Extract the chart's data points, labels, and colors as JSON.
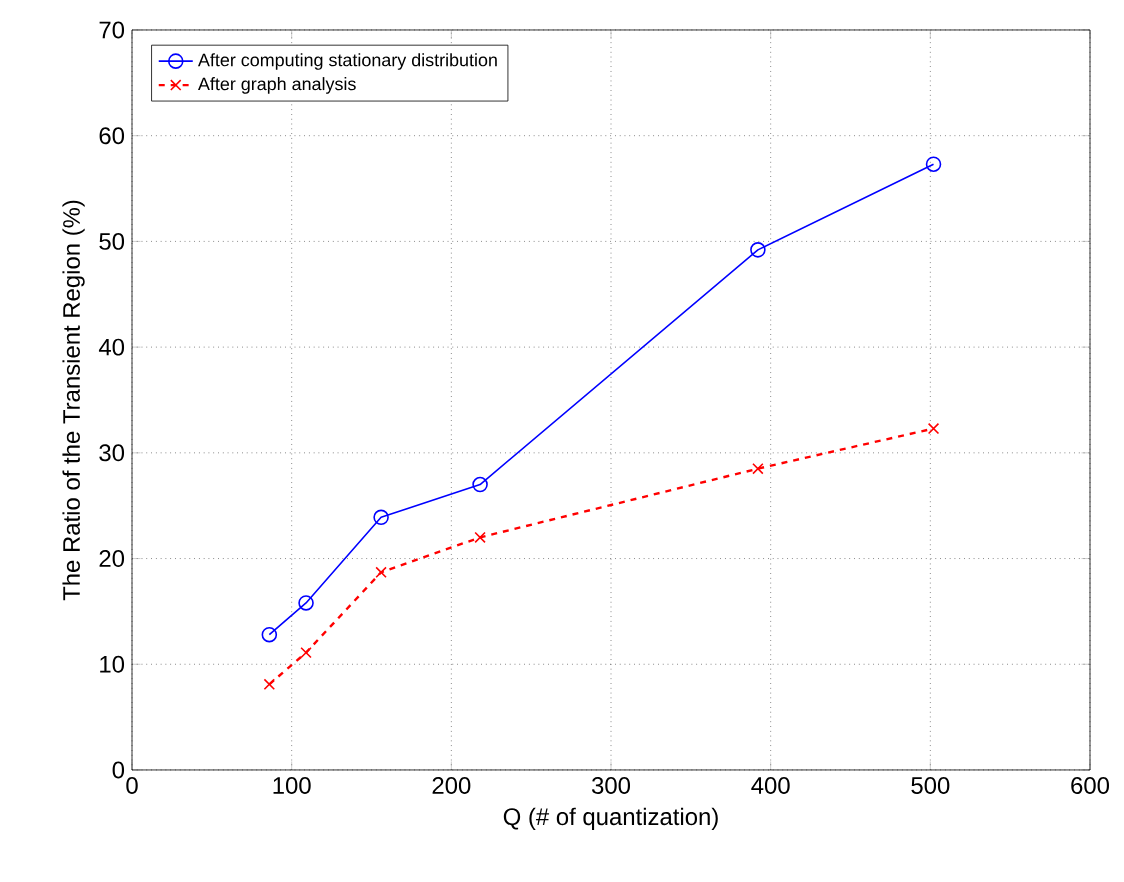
{
  "chart_data": {
    "type": "line",
    "xlabel": "Q (# of quantization)",
    "ylabel": "The Ratio of the Transient Region (%)",
    "xlim": [
      0,
      600
    ],
    "xticks": [
      0,
      100,
      200,
      300,
      400,
      500,
      600
    ],
    "ylim": [
      0,
      70
    ],
    "yticks": [
      0,
      10,
      20,
      30,
      40,
      50,
      60,
      70
    ],
    "grid": true,
    "legend": "top left",
    "series": [
      {
        "name": "After computing stationary distribution",
        "color": "#0000ff",
        "marker": "circle",
        "line_style": "solid",
        "x": [
          86,
          109,
          156,
          218,
          392,
          502
        ],
        "values": [
          12.8,
          15.8,
          23.9,
          27,
          49.2,
          57.3
        ]
      },
      {
        "name": "After graph analysis",
        "color": "#ff0000",
        "marker": "cross",
        "line_style": "dashed",
        "x": [
          86,
          109,
          156,
          218,
          392,
          502
        ],
        "values": [
          8.1,
          11.1,
          18.7,
          22,
          28.5,
          32.3
        ]
      }
    ]
  }
}
